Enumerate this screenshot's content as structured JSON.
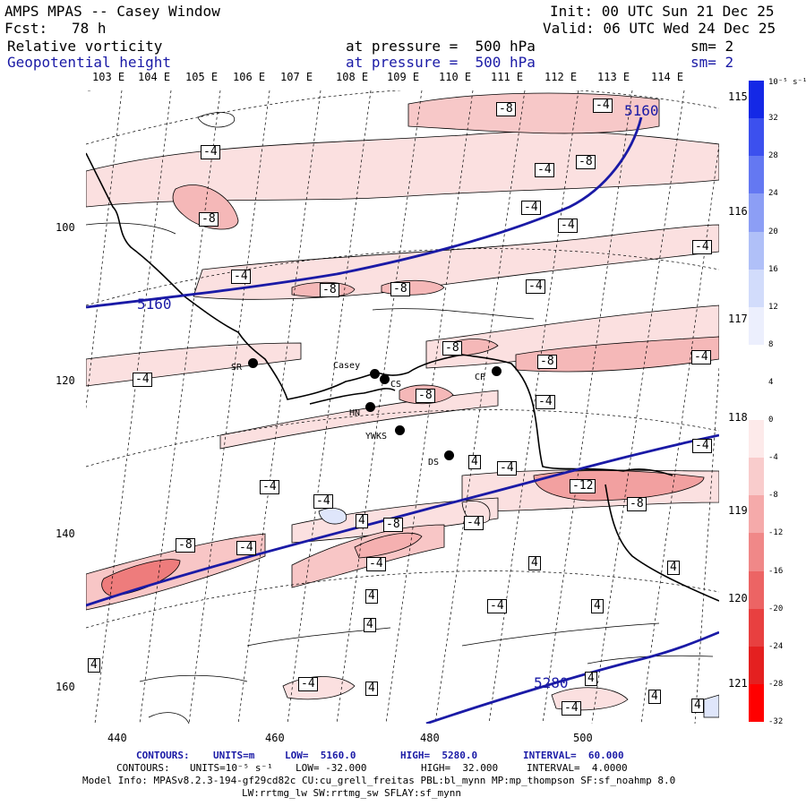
{
  "header": {
    "model": "AMPS MPAS -- Casey Window",
    "forecast_label": "Fcst:",
    "forecast_hours": "78 h",
    "init": "Init: 00 UTC Sun 21 Dec 25",
    "valid": "Valid: 06 UTC Wed 24 Dec 25",
    "field1": "Relative vorticity",
    "field1_pressure": "at pressure =  500 hPa",
    "field1_sm": "sm= 2",
    "field2": "Geopotential height",
    "field2_pressure": "at pressure =  500 hPa",
    "field2_sm": "sm= 2"
  },
  "colorbar": {
    "unit": "10⁻⁵ s⁻¹",
    "labels": [
      "32",
      "28",
      "24",
      "20",
      "16",
      "12",
      "8",
      "4",
      "0",
      "-4",
      "-8",
      "-12",
      "-16",
      "-20",
      "-24",
      "-28",
      "-32"
    ],
    "colors": [
      "#1428e6",
      "#3c50ee",
      "#6478f2",
      "#8c9ef5",
      "#b0c0f8",
      "#d2dcfb",
      "#eceffd",
      "#ffffff",
      "#ffffff",
      "#fdeaea",
      "#f9cccc",
      "#f5aaaa",
      "#f08888",
      "#ec6464",
      "#e84040",
      "#e42020",
      "#ff0000"
    ]
  },
  "axes": {
    "x_ticks": [
      "440",
      "460",
      "480",
      "500"
    ],
    "y_ticks": [
      "100",
      "120",
      "140",
      "160"
    ],
    "lon_top": [
      "103 E",
      "104 E",
      "105 E",
      "106 E",
      "107 E",
      "108 E",
      "109 E",
      "110 E",
      "111 E",
      "112 E",
      "113 E",
      "114 E"
    ],
    "lon_right": [
      "115 E",
      "116 E",
      "117 E",
      "118 E",
      "119 E",
      "120 E",
      "121 E"
    ]
  },
  "stations": [
    {
      "name": "SR",
      "label": "SR"
    },
    {
      "name": "Casey",
      "label": "Casey"
    },
    {
      "name": "CS",
      "label": "CS"
    },
    {
      "name": "CP",
      "label": "CP"
    },
    {
      "name": "HN",
      "label": "HN"
    },
    {
      "name": "YWKS",
      "label": "YWKS"
    },
    {
      "name": "DS",
      "label": "DS"
    }
  ],
  "height_contour_labels": [
    "5160",
    "5160",
    "5280"
  ],
  "vorticity_labels": [
    "-8",
    "-4",
    "-4",
    "-8",
    "-4",
    "-8",
    "-4",
    "-8",
    "-4",
    "-4",
    "-4",
    "-4",
    "-8",
    "-8",
    "-8",
    "-4",
    "-4",
    "-4",
    "-8",
    "-4",
    "-4",
    "4",
    "-4",
    "-12",
    "-8",
    "-4",
    "4",
    "-4",
    "-8",
    "-8",
    "-4",
    "4",
    "4",
    "-4",
    "4",
    "4",
    "-4",
    "4",
    "4",
    "4",
    "-4",
    "4",
    "4",
    "-4",
    "4"
  ],
  "footer": {
    "line1_label": "CONTOURS:",
    "line1_units": "UNITS=m",
    "line1_low": "LOW=  5160.0",
    "line1_high": "HIGH=  5280.0",
    "line1_interval": "INTERVAL=  60.000",
    "line2_label": "CONTOURS:",
    "line2_units": "UNITS=10⁻⁵ s⁻¹",
    "line2_low": "LOW= -32.000",
    "line2_high": "HIGH=  32.000",
    "line2_interval": "INTERVAL=  4.0000",
    "model_info": "Model Info: MPASv8.2.3-194-gf29cd82c CU:cu_grell_freitas PBL:bl_mynn MP:mp_thompson SF:sf_noahmp 8.0",
    "model_info2": "LW:rrtmg_lw SW:rrtmg_sw SFLAY:sf_mynn"
  }
}
